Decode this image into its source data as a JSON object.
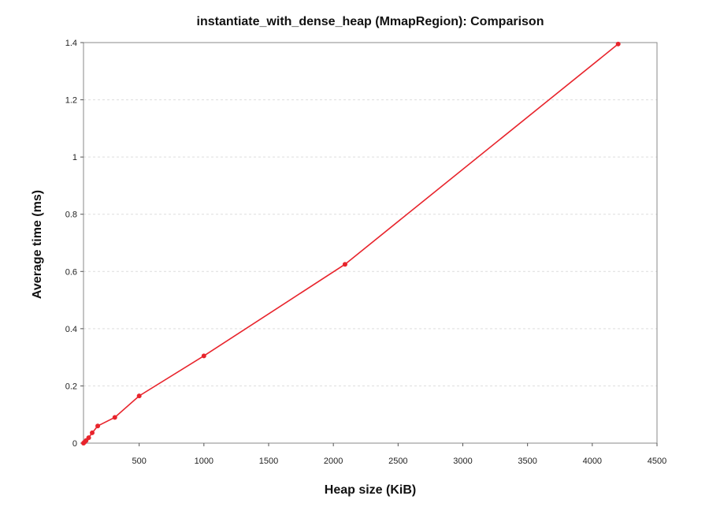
{
  "chart_data": {
    "type": "line",
    "title": "instantiate_with_dense_heap (MmapRegion): Comparison",
    "xlabel": "Heap size (KiB)",
    "ylabel": "Average time (ms)",
    "xlim": [
      70,
      4500
    ],
    "ylim": [
      0,
      1.4
    ],
    "xticks": [
      500,
      1000,
      1500,
      2000,
      2500,
      3000,
      3500,
      4000,
      4500
    ],
    "yticks": [
      0,
      0.2,
      0.4,
      0.6,
      0.8,
      1,
      1.2,
      1.4
    ],
    "xtick_labels": [
      "500",
      "1000",
      "1500",
      "2000",
      "2500",
      "3000",
      "3500",
      "4000",
      "4500"
    ],
    "ytick_labels": [
      "0",
      "0.2",
      "0.4",
      "0.6",
      "0.8",
      "1",
      "1.2",
      "1.4"
    ],
    "grid": true,
    "series": [
      {
        "color": "#e8242c",
        "x": [
          70,
          77,
          90,
          110,
          137,
          180,
          312,
          500,
          1000,
          2090,
          4200
        ],
        "y": [
          0.0,
          0.003,
          0.009,
          0.019,
          0.036,
          0.06,
          0.09,
          0.165,
          0.305,
          0.625,
          1.395
        ]
      }
    ]
  }
}
